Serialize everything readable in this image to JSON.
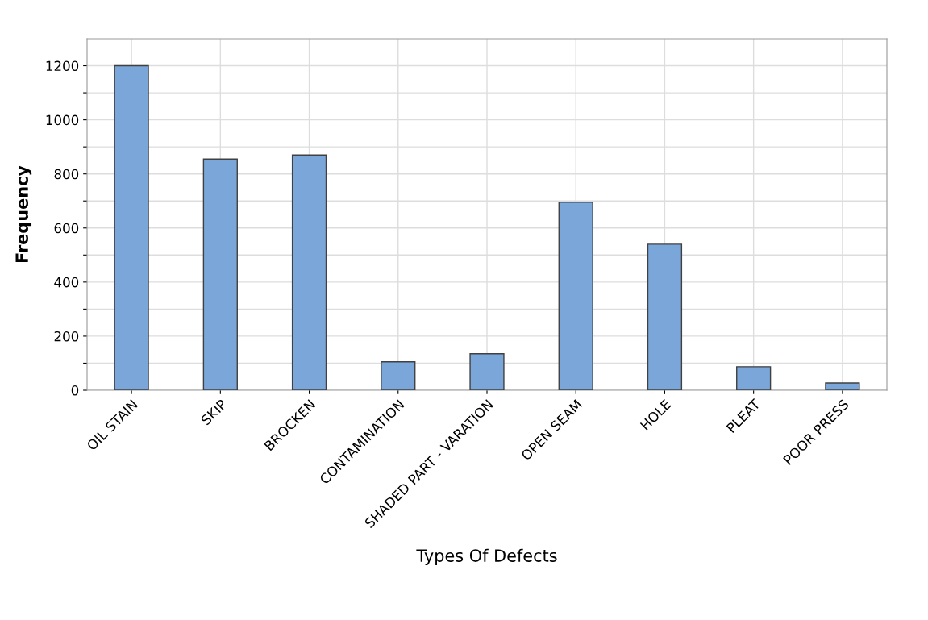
{
  "chart_data": {
    "type": "bar",
    "xlabel": "Types Of Defects",
    "ylabel": "Frequency",
    "categories": [
      "OIL STAIN",
      "SKIP",
      "BROCKEN",
      "CONTAMINATION",
      "SHADED PART - VARATION",
      "OPEN SEAM",
      "HOLE",
      "PLEAT",
      "POOR PRESS"
    ],
    "values": [
      1200,
      855,
      870,
      105,
      135,
      695,
      540,
      87,
      27
    ],
    "color": "#7ba6d9",
    "ylim": [
      0,
      1300
    ],
    "yticks": [
      0,
      {
        "value": 100,
        "label": null
      },
      200,
      {
        "value": 300,
        "label": null
      },
      400,
      {
        "value": 500,
        "label": null
      },
      600,
      {
        "value": 700,
        "label": null
      },
      800,
      {
        "value": 900,
        "label": null
      },
      1000,
      {
        "value": 1100,
        "label": null
      },
      1200
    ],
    "grid": true
  }
}
